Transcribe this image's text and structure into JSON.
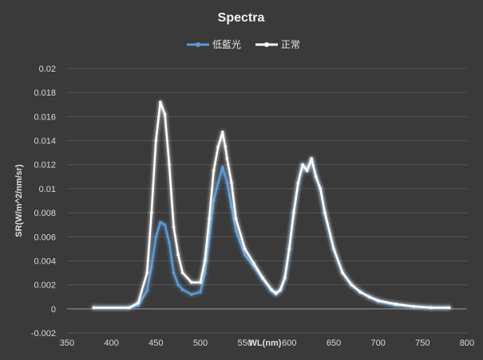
{
  "chart_data": {
    "type": "line",
    "title": "Spectra",
    "xlabel": "WL(nm)",
    "ylabel": "SR(W/m^2/nm/sr)",
    "xlim": [
      350,
      800
    ],
    "ylim": [
      -0.002,
      0.02
    ],
    "xticks": [
      350,
      400,
      450,
      500,
      550,
      600,
      650,
      700,
      750,
      800
    ],
    "yticks": [
      -0.002,
      0,
      0.002,
      0.004,
      0.006,
      0.008,
      0.01,
      0.012,
      0.014,
      0.016,
      0.018,
      0.02
    ],
    "ytick_labels": [
      "-0.002",
      "0",
      "0.002",
      "0.004",
      "0.006",
      "0.008",
      "0.01",
      "0.012",
      "0.014",
      "0.016",
      "0.018",
      "0.02"
    ],
    "xtick_labels": [
      "350",
      "400",
      "450",
      "500",
      "550",
      "600",
      "650",
      "700",
      "750",
      "800"
    ],
    "grid": "horizontal",
    "legend": "top-center",
    "series": [
      {
        "name": "低藍光",
        "color": "#5b9bd5",
        "x": [
          380,
          420,
          430,
          440,
          445,
          450,
          455,
          460,
          465,
          470,
          475,
          480,
          490,
          500,
          505,
          510,
          515,
          520,
          525,
          530,
          535,
          540,
          550,
          560,
          570,
          580,
          585,
          590,
          595,
          600,
          605,
          610,
          615,
          620,
          625,
          630,
          635,
          640,
          650,
          660,
          670,
          680,
          690,
          700,
          720,
          740,
          760,
          780
        ],
        "y": [
          0.0001,
          0.0001,
          0.0003,
          0.0015,
          0.0035,
          0.006,
          0.0072,
          0.007,
          0.0055,
          0.003,
          0.002,
          0.0016,
          0.0012,
          0.0014,
          0.003,
          0.006,
          0.009,
          0.0105,
          0.0118,
          0.0105,
          0.0085,
          0.0065,
          0.0045,
          0.0035,
          0.0025,
          0.0015,
          0.0012,
          0.0015,
          0.0025,
          0.005,
          0.008,
          0.0105,
          0.012,
          0.0115,
          0.0125,
          0.011,
          0.01,
          0.008,
          0.005,
          0.003,
          0.002,
          0.0014,
          0.001,
          0.0006,
          0.0003,
          0.0002,
          0.0001,
          0.0001
        ]
      },
      {
        "name": "正常",
        "color": "#ffffff",
        "x": [
          380,
          420,
          430,
          440,
          445,
          450,
          455,
          460,
          465,
          470,
          475,
          480,
          490,
          500,
          505,
          510,
          515,
          520,
          525,
          528,
          530,
          535,
          540,
          550,
          560,
          570,
          580,
          585,
          590,
          595,
          600,
          605,
          610,
          615,
          620,
          625,
          630,
          635,
          640,
          650,
          660,
          670,
          680,
          690,
          700,
          720,
          740,
          760,
          780
        ],
        "y": [
          0.0001,
          0.0001,
          0.0005,
          0.003,
          0.008,
          0.014,
          0.0172,
          0.0162,
          0.012,
          0.0068,
          0.0045,
          0.003,
          0.0022,
          0.0022,
          0.004,
          0.0075,
          0.0115,
          0.0135,
          0.0147,
          0.0135,
          0.0125,
          0.0105,
          0.0075,
          0.005,
          0.0038,
          0.0026,
          0.0016,
          0.0013,
          0.0016,
          0.0026,
          0.005,
          0.008,
          0.0105,
          0.012,
          0.0115,
          0.0125,
          0.011,
          0.01,
          0.008,
          0.005,
          0.003,
          0.002,
          0.0014,
          0.001,
          0.0007,
          0.0004,
          0.0002,
          0.0001,
          0.0001
        ]
      }
    ]
  }
}
